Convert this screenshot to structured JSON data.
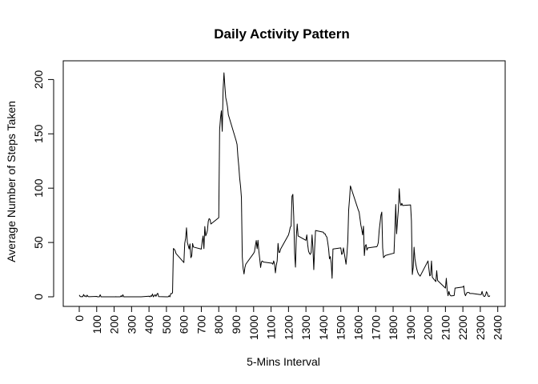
{
  "chart_data": {
    "type": "line",
    "title": "Daily Activity Pattern",
    "xlabel": "5-Mins Interval",
    "ylabel": "Average Number of Steps Taken",
    "xlim": [
      0,
      2355
    ],
    "ylim": [
      0,
      206
    ],
    "x_ticks": [
      0,
      100,
      200,
      300,
      400,
      500,
      600,
      700,
      800,
      900,
      1000,
      1100,
      1200,
      1300,
      1400,
      1500,
      1600,
      1700,
      1800,
      1900,
      2000,
      2100,
      2200,
      2300,
      2400
    ],
    "x_tick_labels": [
      "0",
      "100",
      "200",
      "300",
      "400",
      "500",
      "600",
      "700",
      "800",
      "900",
      "1000",
      "1100",
      "1200",
      "1300",
      "1400",
      "1500",
      "1600",
      "1700",
      "1800",
      "1900",
      "2000",
      "2100",
      "2200",
      "2300",
      "2400"
    ],
    "y_ticks": [
      0,
      50,
      100,
      150,
      200
    ],
    "y_tick_labels": [
      "0",
      "50",
      "100",
      "150",
      "200"
    ],
    "grid": false,
    "line_color": "#000000",
    "series": [
      {
        "x": [
          0,
          5,
          10,
          15,
          20,
          25,
          30,
          35,
          40,
          45,
          50,
          55,
          100,
          105,
          110,
          115,
          120,
          125,
          130,
          135,
          140,
          145,
          150,
          155,
          200,
          205,
          210,
          215,
          220,
          225,
          230,
          235,
          240,
          245,
          250,
          255,
          300,
          305,
          310,
          315,
          320,
          325,
          330,
          335,
          340,
          345,
          350,
          355,
          400,
          405,
          410,
          415,
          420,
          425,
          430,
          435,
          440,
          445,
          450,
          455,
          500,
          505,
          510,
          515,
          520,
          525,
          530,
          535,
          540,
          545,
          550,
          555,
          600,
          605,
          610,
          615,
          620,
          625,
          630,
          635,
          640,
          645,
          650,
          655,
          700,
          705,
          710,
          715,
          720,
          725,
          730,
          735,
          740,
          745,
          750,
          755,
          800,
          805,
          810,
          815,
          820,
          825,
          830,
          835,
          840,
          845,
          850,
          855,
          900,
          905,
          910,
          915,
          920,
          925,
          930,
          935,
          940,
          945,
          950,
          955,
          1000,
          1005,
          1010,
          1015,
          1020,
          1025,
          1030,
          1035,
          1040,
          1045,
          1050,
          1055,
          1100,
          1105,
          1110,
          1115,
          1120,
          1125,
          1130,
          1135,
          1140,
          1145,
          1150,
          1155,
          1200,
          1205,
          1210,
          1215,
          1220,
          1225,
          1230,
          1235,
          1240,
          1245,
          1250,
          1255,
          1300,
          1305,
          1310,
          1315,
          1320,
          1325,
          1330,
          1335,
          1340,
          1345,
          1350,
          1355,
          1400,
          1405,
          1410,
          1415,
          1420,
          1425,
          1430,
          1435,
          1440,
          1445,
          1450,
          1455,
          1500,
          1505,
          1510,
          1515,
          1520,
          1525,
          1530,
          1535,
          1540,
          1545,
          1550,
          1555,
          1600,
          1605,
          1610,
          1615,
          1620,
          1625,
          1630,
          1635,
          1640,
          1645,
          1650,
          1655,
          1700,
          1705,
          1710,
          1715,
          1720,
          1725,
          1730,
          1735,
          1740,
          1745,
          1750,
          1755,
          1800,
          1805,
          1810,
          1815,
          1820,
          1825,
          1830,
          1835,
          1840,
          1845,
          1850,
          1855,
          1900,
          1905,
          1910,
          1915,
          1920,
          1925,
          1930,
          1935,
          1940,
          1945,
          1950,
          1955,
          2000,
          2005,
          2010,
          2015,
          2020,
          2025,
          2030,
          2035,
          2040,
          2045,
          2050,
          2055,
          2100,
          2105,
          2110,
          2115,
          2120,
          2125,
          2130,
          2135,
          2140,
          2145,
          2150,
          2155,
          2200,
          2205,
          2210,
          2215,
          2220,
          2225,
          2230,
          2235,
          2240,
          2245,
          2250,
          2255,
          2300,
          2305,
          2310,
          2315,
          2320,
          2325,
          2330,
          2335,
          2340,
          2345,
          2350,
          2355
        ],
        "y": [
          1.7,
          0.3,
          0.1,
          0.2,
          0.1,
          2.1,
          0.5,
          0.9,
          0.0,
          1.5,
          0.3,
          0.1,
          0.4,
          0.0,
          0.0,
          0.0,
          1.9,
          0.0,
          0.0,
          0.0,
          0.0,
          0.0,
          0.0,
          0.0,
          0.0,
          0.0,
          0.1,
          0.0,
          0.0,
          0.0,
          0.0,
          0.0,
          1.0,
          0.0,
          1.9,
          0.0,
          0.0,
          0.0,
          0.0,
          0.0,
          0.0,
          0.0,
          0.0,
          0.0,
          0.0,
          0.0,
          0.0,
          0.0,
          0.6,
          0.0,
          1.0,
          0.4,
          2.6,
          0.0,
          1.0,
          2.0,
          0.4,
          2.2,
          3.3,
          0.2,
          0.0,
          0.0,
          0.0,
          1.0,
          0.0,
          3.0,
          2.9,
          3.7,
          44.5,
          43.8,
          42.4,
          39.8,
          31.5,
          49.3,
          53.8,
          63.5,
          50.0,
          47.0,
          44.0,
          48.7,
          36.0,
          37.6,
          49.1,
          45.8,
          43.9,
          51.0,
          56.0,
          44.4,
          64.7,
          56.1,
          58.0,
          61.0,
          69.6,
          72.0,
          71.1,
          67.0,
          72.8,
          153.9,
          164.6,
          171.2,
          152.3,
          190.8,
          206.2,
          194.0,
          183.4,
          179.6,
          175.0,
          167.6,
          143.5,
          140.2,
          128.7,
          120.0,
          109.0,
          101.8,
          91.3,
          36.7,
          26.0,
          21.0,
          27.0,
          30.0,
          40.0,
          41.6,
          47.0,
          51.8,
          44.3,
          52.0,
          42.0,
          35.0,
          27.0,
          32.2,
          33.0,
          32.0,
          31.0,
          31.0,
          30.0,
          33.0,
          30.0,
          22.0,
          29.0,
          33.0,
          49.2,
          41.0,
          41.0,
          44.0,
          57.0,
          60.0,
          64.0,
          65.0,
          92.5,
          94.3,
          74.0,
          40.2,
          27.3,
          56.0,
          67.0,
          56.0,
          52.0,
          57.0,
          48.0,
          42.0,
          40.0,
          39.0,
          41.0,
          57.0,
          45.0,
          25.0,
          45.0,
          61.0,
          59.5,
          58.0,
          58.0,
          56.0,
          55.0,
          50.0,
          44.2,
          35.0,
          37.0,
          31.0,
          17.0,
          44.0,
          45.0,
          39.0,
          40.0,
          45.0,
          40.0,
          35.0,
          30.0,
          39.0,
          51.0,
          80.0,
          90.0,
          102.1,
          80.0,
          78.0,
          72.0,
          66.0,
          62.0,
          57.0,
          65.0,
          38.0,
          47.0,
          48.0,
          43.0,
          45.0,
          46.0,
          46.0,
          47.0,
          50.0,
          61.0,
          68.0,
          75.0,
          78.0,
          45.0,
          36.0,
          37.0,
          38.0,
          40.0,
          40.0,
          61.0,
          85.0,
          58.0,
          70.0,
          80.0,
          99.5,
          87.0,
          84.0,
          86.0,
          84.0,
          84.6,
          70.0,
          20.5,
          27.0,
          45.7,
          35.0,
          30.0,
          26.0,
          23.0,
          21.0,
          20.0,
          19.0,
          33.0,
          26.0,
          19.3,
          20.0,
          33.0,
          18.0,
          17.0,
          16.0,
          15.0,
          14.0,
          24.0,
          15.0,
          8.0,
          17.0,
          6.0,
          1.0,
          5.0,
          2.0,
          1.0,
          0.8,
          1.0,
          1.0,
          1.2,
          8.0,
          9.0,
          10.0,
          3.0,
          1.0,
          3.0,
          4.0,
          4.0,
          4.0,
          3.0,
          3.0,
          3.0,
          3.0,
          2.0,
          2.0,
          5.0,
          2.0,
          0.5,
          0.3,
          1.5,
          4.7,
          3.3,
          0.6,
          0.2,
          1.1
        ]
      }
    ]
  }
}
